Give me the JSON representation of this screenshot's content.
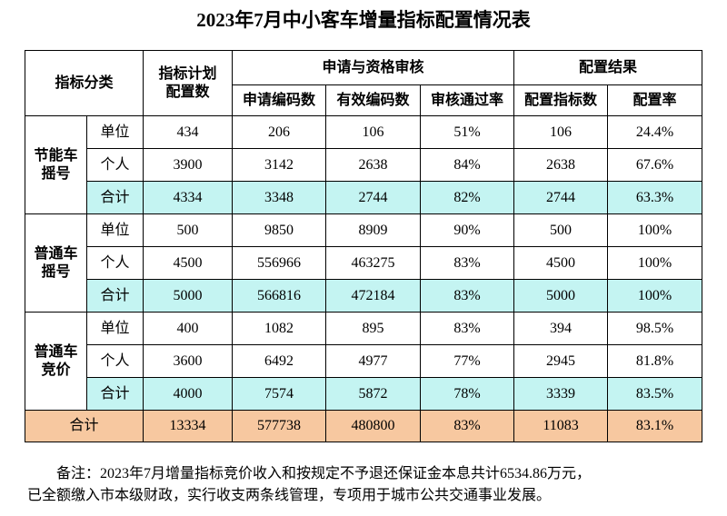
{
  "title": "2023年7月中小客车增量指标配置情况表",
  "table": {
    "header": {
      "category": "指标分类",
      "plan": [
        "指标计划",
        "配置数"
      ],
      "review": "申请与资格审核",
      "review_cols": [
        "申请编码数",
        "有效编码数",
        "审核通过率"
      ],
      "result": "配置结果",
      "result_cols": [
        "配置指标数",
        "配置率"
      ]
    },
    "groups": [
      {
        "label": [
          "节能车",
          "摇号"
        ],
        "rows": [
          [
            "单位",
            "434",
            "206",
            "106",
            "51%",
            "106",
            "24.4%"
          ],
          [
            "个人",
            "3900",
            "3142",
            "2638",
            "84%",
            "2638",
            "67.6%"
          ],
          [
            "合计",
            "4334",
            "3348",
            "2744",
            "82%",
            "2744",
            "63.3%"
          ]
        ]
      },
      {
        "label": [
          "普通车",
          "摇号"
        ],
        "rows": [
          [
            "单位",
            "500",
            "9850",
            "8909",
            "90%",
            "500",
            "100%"
          ],
          [
            "个人",
            "4500",
            "556966",
            "463275",
            "83%",
            "4500",
            "100%"
          ],
          [
            "合计",
            "5000",
            "566816",
            "472184",
            "83%",
            "5000",
            "100%"
          ]
        ]
      },
      {
        "label": [
          "普通车",
          "竞价"
        ],
        "rows": [
          [
            "单位",
            "400",
            "1082",
            "895",
            "83%",
            "394",
            "98.5%"
          ],
          [
            "个人",
            "3600",
            "6492",
            "4977",
            "77%",
            "2945",
            "81.8%"
          ],
          [
            "合计",
            "4000",
            "7574",
            "5872",
            "78%",
            "3339",
            "83.5%"
          ]
        ]
      }
    ],
    "total": [
      "合计",
      "13334",
      "577738",
      "480800",
      "83%",
      "11083",
      "83.1%"
    ]
  },
  "note": [
    "备注：2023年7月增量指标竞价收入和按规定不予退还保证金本息共计6534.86万元，",
    "已全额缴入市本级财政，实行收支两条线管理，专项用于城市公共交通事业发展。"
  ]
}
